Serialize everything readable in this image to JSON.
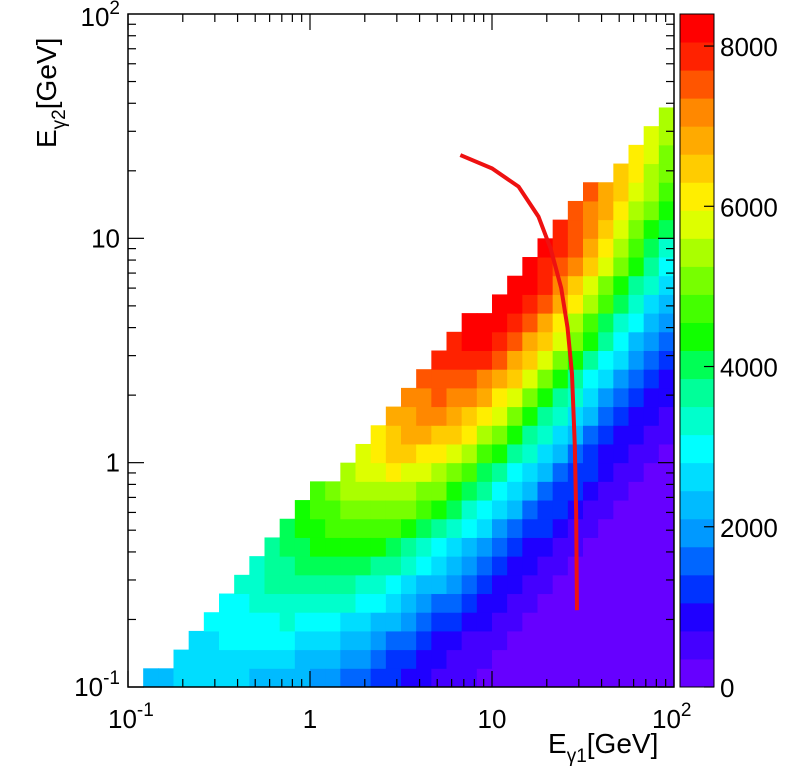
{
  "chart_data": {
    "type": "heatmap",
    "x_scale": "log",
    "y_scale": "log",
    "xlim": [
      0.1,
      100
    ],
    "ylim": [
      0.1,
      100
    ],
    "x_ticks": [
      {
        "value": 0.1,
        "base": "10",
        "exp": "-1",
        "label": ""
      },
      {
        "value": 1,
        "base": "",
        "exp": "",
        "label": "1"
      },
      {
        "value": 10,
        "base": "",
        "exp": "",
        "label": "10"
      },
      {
        "value": 100,
        "base": "10",
        "exp": "2",
        "label": ""
      }
    ],
    "y_ticks": [
      {
        "value": 0.1,
        "base": "10",
        "exp": "-1",
        "label": ""
      },
      {
        "value": 1,
        "base": "",
        "exp": "",
        "label": "1"
      },
      {
        "value": 10,
        "base": "",
        "exp": "",
        "label": "10"
      },
      {
        "value": 100,
        "base": "10",
        "exp": "2",
        "label": ""
      }
    ],
    "xlabel": {
      "main": "E",
      "sub": "γ1",
      "unit": "[GeV]"
    },
    "ylabel": {
      "main": "E",
      "sub": "γ2",
      "unit": "[GeV]"
    },
    "zlim": [
      0,
      8400
    ],
    "z_ticks": [
      "0",
      "2000",
      "4000",
      "6000",
      "8000"
    ],
    "z_tick_values": [
      0,
      2000,
      4000,
      6000,
      8000
    ],
    "palette": [
      "#6600ff",
      "#4400ff",
      "#1f00ff",
      "#0033ff",
      "#0066ff",
      "#0099ff",
      "#00bbff",
      "#00ddff",
      "#00ffff",
      "#00ffcc",
      "#00ff99",
      "#00ff55",
      "#11ff00",
      "#44ff00",
      "#77ff00",
      "#aaff00",
      "#ddff00",
      "#ffee00",
      "#ffcc00",
      "#ffaa00",
      "#ff8800",
      "#ff5500",
      "#ff2200",
      "#ff0000"
    ],
    "bins_per_decade": 12,
    "density_model": {
      "ridge_ratio_low": 0.85,
      "ridge_ratio_high": 0.4,
      "peak_e1": 12,
      "sum_upper_gev": 140,
      "peak_value": 8400
    },
    "curve": {
      "color": "#ee1111",
      "points": [
        [
          6.7,
          23.5
        ],
        [
          10,
          20.5
        ],
        [
          14,
          17
        ],
        [
          18,
          12.5
        ],
        [
          21,
          9
        ],
        [
          24,
          6
        ],
        [
          26,
          4
        ],
        [
          27.5,
          2.5
        ],
        [
          28.5,
          1.2
        ],
        [
          29,
          0.6
        ],
        [
          29.3,
          0.22
        ]
      ]
    }
  }
}
